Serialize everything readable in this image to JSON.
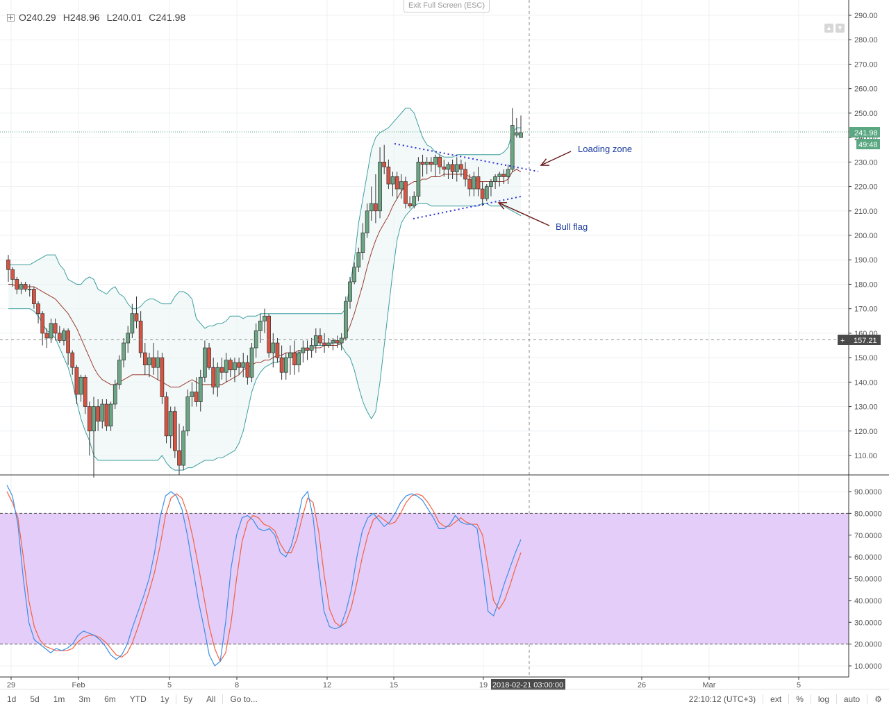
{
  "ohlc": {
    "o": "O240.29",
    "h": "H248.96",
    "l": "L240.01",
    "c": "C241.98"
  },
  "exit_label": "Exit Full Screen (ESC)",
  "price_axis": {
    "labels": [
      "290.00",
      "280.00",
      "270.00",
      "260.00",
      "250.00",
      "240.00",
      "230.00",
      "220.00",
      "210.00",
      "200.00",
      "190.00",
      "180.00",
      "170.00",
      "160.00",
      "150.00",
      "140.00",
      "130.00",
      "120.00",
      "110.00"
    ],
    "last_price": "241.98",
    "countdown": "49:48",
    "crosshair_price": "157.21"
  },
  "osc_axis": {
    "labels": [
      "90.0000",
      "80.0000",
      "70.0000",
      "60.0000",
      "50.0000",
      "40.0000",
      "30.0000",
      "20.0000",
      "10.0000"
    ]
  },
  "x_axis": {
    "labels": [
      "29",
      "Feb",
      "5",
      "8",
      "12",
      "15",
      "19",
      "26",
      "Mar",
      "5"
    ],
    "crosshair_time": "2018-02-21 03:00:00"
  },
  "annotations": {
    "loading_zone": "Loading zone",
    "bull_flag": "Bull flag"
  },
  "toolbar": {
    "left": [
      "1d",
      "5d",
      "1m",
      "3m",
      "6m",
      "YTD",
      "1y",
      "5y",
      "All",
      "Go to..."
    ],
    "time": "22:10:12 (UTC+3)",
    "right": [
      "ext",
      "%",
      "log",
      "auto"
    ]
  },
  "colors": {
    "up": "#6ba583",
    "down": "#d75442",
    "bb": "#3d9ea0",
    "basis": "#9b3b31",
    "stoch_k": "#3a8ee6",
    "stoch_d": "#f2613f",
    "osc_band": "#e5cdf9"
  },
  "chart_data": {
    "type": "candlestick",
    "price_range": [
      102,
      293
    ],
    "candles": [
      [
        190,
        192,
        181,
        186
      ],
      [
        186,
        187,
        179,
        182
      ],
      [
        182,
        183,
        176,
        178
      ],
      [
        178,
        181,
        176,
        180
      ],
      [
        180,
        181,
        177,
        178
      ],
      [
        178,
        180,
        175,
        178
      ],
      [
        178,
        179,
        170,
        172
      ],
      [
        172,
        173,
        164,
        168
      ],
      [
        168,
        169,
        155,
        160
      ],
      [
        160,
        162,
        154,
        158
      ],
      [
        158,
        166,
        156,
        164
      ],
      [
        164,
        166,
        157,
        160
      ],
      [
        160,
        163,
        156,
        157
      ],
      [
        157,
        162,
        155,
        161
      ],
      [
        161,
        162,
        147,
        152
      ],
      [
        152,
        153,
        143,
        146
      ],
      [
        146,
        147,
        131,
        135
      ],
      [
        135,
        143,
        132,
        142
      ],
      [
        142,
        143,
        127,
        130
      ],
      [
        130,
        132,
        110,
        120
      ],
      [
        120,
        134,
        101,
        130
      ],
      [
        130,
        133,
        120,
        124
      ],
      [
        124,
        133,
        121,
        131
      ],
      [
        131,
        133,
        120,
        122
      ],
      [
        122,
        132,
        120,
        131
      ],
      [
        131,
        141,
        129,
        139
      ],
      [
        139,
        151,
        137,
        149
      ],
      [
        149,
        158,
        146,
        156
      ],
      [
        156,
        163,
        152,
        160
      ],
      [
        160,
        172,
        158,
        168
      ],
      [
        168,
        175,
        162,
        165
      ],
      [
        165,
        169,
        150,
        152
      ],
      [
        152,
        156,
        143,
        147
      ],
      [
        147,
        152,
        142,
        150
      ],
      [
        150,
        156,
        143,
        146
      ],
      [
        146,
        153,
        141,
        150
      ],
      [
        150,
        152,
        131,
        134
      ],
      [
        134,
        136,
        115,
        118
      ],
      [
        118,
        130,
        113,
        128
      ],
      [
        128,
        130,
        109,
        112
      ],
      [
        112,
        123,
        102,
        106
      ],
      [
        106,
        122,
        104,
        120
      ],
      [
        120,
        137,
        118,
        134
      ],
      [
        134,
        140,
        130,
        136
      ],
      [
        136,
        142,
        130,
        132
      ],
      [
        132,
        145,
        128,
        142
      ],
      [
        142,
        157,
        140,
        154
      ],
      [
        154,
        156,
        145,
        146
      ],
      [
        146,
        150,
        135,
        138
      ],
      [
        138,
        148,
        134,
        146
      ],
      [
        146,
        150,
        141,
        144
      ],
      [
        144,
        152,
        140,
        149
      ],
      [
        149,
        150,
        142,
        145
      ],
      [
        145,
        150,
        140,
        148
      ],
      [
        148,
        150,
        143,
        146
      ],
      [
        146,
        152,
        142,
        148
      ],
      [
        148,
        151,
        139,
        142
      ],
      [
        142,
        156,
        140,
        154
      ],
      [
        154,
        164,
        150,
        161
      ],
      [
        161,
        168,
        156,
        165
      ],
      [
        165,
        170,
        160,
        167
      ],
      [
        167,
        168,
        150,
        152
      ],
      [
        152,
        160,
        146,
        156
      ],
      [
        156,
        158,
        148,
        150
      ],
      [
        150,
        155,
        141,
        144
      ],
      [
        144,
        152,
        141,
        150
      ],
      [
        150,
        155,
        143,
        152
      ],
      [
        152,
        157,
        143,
        147
      ],
      [
        147,
        153,
        144,
        152
      ],
      [
        152,
        157,
        148,
        154
      ],
      [
        154,
        157,
        149,
        153
      ],
      [
        153,
        158,
        150,
        155
      ],
      [
        155,
        162,
        152,
        159
      ],
      [
        159,
        162,
        155,
        156
      ],
      [
        156,
        160,
        152,
        155
      ],
      [
        155,
        158,
        154,
        156
      ],
      [
        156,
        158,
        153,
        157
      ],
      [
        157,
        159,
        154,
        156
      ],
      [
        156,
        160,
        153,
        158
      ],
      [
        158,
        175,
        157,
        173
      ],
      [
        173,
        183,
        170,
        181
      ],
      [
        181,
        189,
        180,
        187
      ],
      [
        187,
        195,
        185,
        193
      ],
      [
        193,
        205,
        190,
        201
      ],
      [
        201,
        213,
        199,
        210
      ],
      [
        210,
        220,
        206,
        213
      ],
      [
        213,
        225,
        205,
        210
      ],
      [
        210,
        236,
        207,
        230
      ],
      [
        230,
        237,
        225,
        228
      ],
      [
        228,
        231,
        219,
        221
      ],
      [
        221,
        226,
        216,
        224
      ],
      [
        224,
        226,
        215,
        219
      ],
      [
        219,
        225,
        215,
        222
      ],
      [
        222,
        224,
        211,
        213
      ],
      [
        213,
        216,
        211,
        212
      ],
      [
        212,
        218,
        211,
        216
      ],
      [
        216,
        232,
        214,
        230
      ],
      [
        230,
        233,
        224,
        229
      ],
      [
        229,
        232,
        225,
        230
      ],
      [
        230,
        232,
        226,
        229
      ],
      [
        229,
        233,
        224,
        232
      ],
      [
        232,
        233,
        225,
        228
      ],
      [
        228,
        231,
        224,
        227
      ],
      [
        227,
        230,
        223,
        229
      ],
      [
        229,
        231,
        223,
        226
      ],
      [
        226,
        232,
        222,
        229
      ],
      [
        229,
        231,
        224,
        227
      ],
      [
        227,
        230,
        220,
        223
      ],
      [
        223,
        225,
        216,
        219
      ],
      [
        219,
        226,
        216,
        224
      ],
      [
        224,
        228,
        216,
        219
      ],
      [
        219,
        222,
        212,
        215
      ],
      [
        215,
        221,
        214,
        220
      ],
      [
        220,
        223,
        216,
        222
      ],
      [
        222,
        225,
        219,
        224
      ],
      [
        224,
        226,
        220,
        225
      ],
      [
        225,
        227,
        221,
        224
      ],
      [
        224,
        229,
        221,
        227
      ],
      [
        227,
        252,
        226,
        245
      ],
      [
        241,
        248,
        240,
        242
      ],
      [
        240,
        249,
        240,
        242
      ]
    ],
    "bollinger_upper": [
      188,
      188,
      188,
      188,
      188,
      188,
      189,
      190,
      191,
      192,
      192,
      192,
      188,
      186,
      182,
      181,
      180,
      180,
      182,
      183,
      182,
      178,
      177,
      176,
      178,
      179,
      176,
      175,
      172,
      170,
      170,
      171,
      173,
      174,
      174,
      173,
      172,
      172,
      172,
      175,
      177,
      177,
      176,
      174,
      166,
      164,
      162,
      163,
      163,
      164,
      164,
      165,
      167,
      167,
      167,
      166,
      167,
      167,
      167,
      168,
      168,
      168,
      168,
      168,
      168,
      168,
      168,
      168,
      168,
      168,
      168,
      168,
      168,
      168,
      168,
      168,
      168,
      168,
      168,
      170,
      180,
      190,
      205,
      215,
      225,
      235,
      240,
      242,
      243,
      244,
      246,
      248,
      250,
      252,
      252,
      250,
      245,
      240,
      237,
      236,
      234,
      233,
      232,
      232,
      232,
      233,
      233,
      233,
      233,
      233,
      233,
      233,
      233,
      233,
      233,
      233,
      234,
      236,
      242,
      244,
      244
    ],
    "bollinger_lower": [
      170,
      170,
      170,
      170,
      170,
      170,
      169,
      167,
      164,
      161,
      160,
      158,
      154,
      150,
      146,
      140,
      132,
      125,
      120,
      116,
      110,
      108,
      108,
      108,
      108,
      108,
      108,
      108,
      108,
      108,
      108,
      108,
      108,
      108,
      108,
      108,
      110,
      107,
      105,
      104,
      104,
      104,
      105,
      105,
      106,
      107,
      108,
      108,
      108,
      109,
      109,
      110,
      111,
      112,
      115,
      120,
      128,
      136,
      141,
      144,
      146,
      147,
      148,
      148,
      149,
      150,
      150,
      150,
      152,
      153,
      153,
      154,
      155,
      155,
      155,
      155,
      156,
      156,
      155,
      152,
      150,
      145,
      138,
      132,
      128,
      125,
      128,
      140,
      155,
      170,
      185,
      198,
      205,
      208,
      210,
      212,
      213,
      213,
      213,
      212,
      212,
      212,
      212,
      212,
      212,
      212,
      212,
      212,
      212,
      212,
      212,
      213,
      213,
      212,
      212,
      212,
      212,
      211,
      210,
      209,
      208
    ],
    "bollinger_basis": [
      180,
      180,
      179,
      179,
      179,
      179,
      179,
      178,
      177,
      176,
      175,
      174,
      172,
      170,
      168,
      165,
      162,
      158,
      154,
      150,
      146,
      143,
      141,
      140,
      139,
      139,
      140,
      141,
      142,
      143,
      143,
      143,
      143,
      143,
      142,
      141,
      140,
      139,
      138,
      138,
      138,
      139,
      140,
      141,
      140,
      139,
      139,
      139,
      139,
      139,
      139,
      140,
      141,
      142,
      143,
      145,
      146,
      147,
      148,
      148,
      149,
      149,
      150,
      151,
      151,
      152,
      152,
      152,
      153,
      153,
      153,
      154,
      154,
      154,
      155,
      155,
      155,
      155,
      156,
      159,
      163,
      168,
      174,
      180,
      187,
      193,
      198,
      202,
      205,
      208,
      212,
      215,
      218,
      220,
      221,
      222,
      222,
      223,
      223,
      224,
      224,
      224,
      225,
      225,
      225,
      225,
      225,
      225,
      224,
      223,
      222,
      222,
      222,
      222,
      222,
      222,
      222,
      223,
      226,
      227,
      226
    ],
    "stoch_k": [
      93,
      88,
      75,
      50,
      30,
      22,
      20,
      18,
      16,
      18,
      17,
      18,
      20,
      24,
      26,
      25,
      24,
      22,
      19,
      15,
      13,
      15,
      20,
      28,
      35,
      42,
      50,
      62,
      78,
      88,
      90,
      88,
      82,
      70,
      55,
      40,
      28,
      15,
      10,
      12,
      30,
      55,
      70,
      78,
      79,
      77,
      73,
      72,
      73,
      70,
      62,
      60,
      65,
      75,
      87,
      90,
      78,
      55,
      35,
      28,
      27,
      28,
      35,
      45,
      60,
      72,
      78,
      80,
      77,
      74,
      76,
      80,
      85,
      88,
      89,
      88,
      86,
      82,
      78,
      73,
      73,
      75,
      79,
      76,
      75,
      75,
      73,
      55,
      35,
      33,
      40,
      48,
      55,
      62,
      68
    ],
    "stoch_d": [
      90,
      85,
      78,
      60,
      40,
      28,
      22,
      19,
      18,
      17,
      17,
      17,
      18,
      21,
      23,
      24,
      24,
      23,
      21,
      18,
      15,
      14,
      16,
      21,
      28,
      36,
      44,
      53,
      65,
      79,
      87,
      89,
      87,
      80,
      69,
      56,
      42,
      28,
      18,
      12,
      16,
      30,
      50,
      67,
      76,
      79,
      78,
      75,
      74,
      72,
      66,
      62,
      62,
      68,
      78,
      87,
      85,
      72,
      52,
      36,
      30,
      28,
      30,
      37,
      48,
      60,
      70,
      77,
      79,
      77,
      75,
      76,
      80,
      85,
      88,
      89,
      88,
      85,
      81,
      76,
      74,
      74,
      76,
      78,
      76,
      75,
      75,
      70,
      55,
      40,
      36,
      40,
      47,
      55,
      62
    ],
    "stoch_bands": [
      20,
      80
    ],
    "stoch_range": [
      6,
      96
    ]
  }
}
